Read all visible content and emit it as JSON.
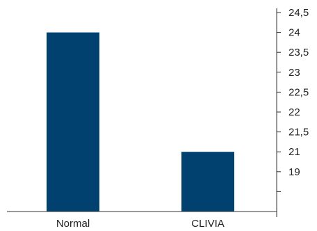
{
  "chart_data": {
    "type": "bar",
    "categories": [
      "Normal",
      "CLIVIA"
    ],
    "values": [
      24,
      21
    ],
    "title": "",
    "xlabel": "",
    "ylabel": "",
    "y_axis_position": "right",
    "y_tick_labels": [
      "24,5",
      "24",
      "23,5",
      "23",
      "22,5",
      "22",
      "21,5",
      "21",
      "19"
    ],
    "grid": false,
    "legend": "none",
    "colors": {
      "bar": "#00416f",
      "axis": "#333333",
      "text": "#222222"
    }
  }
}
